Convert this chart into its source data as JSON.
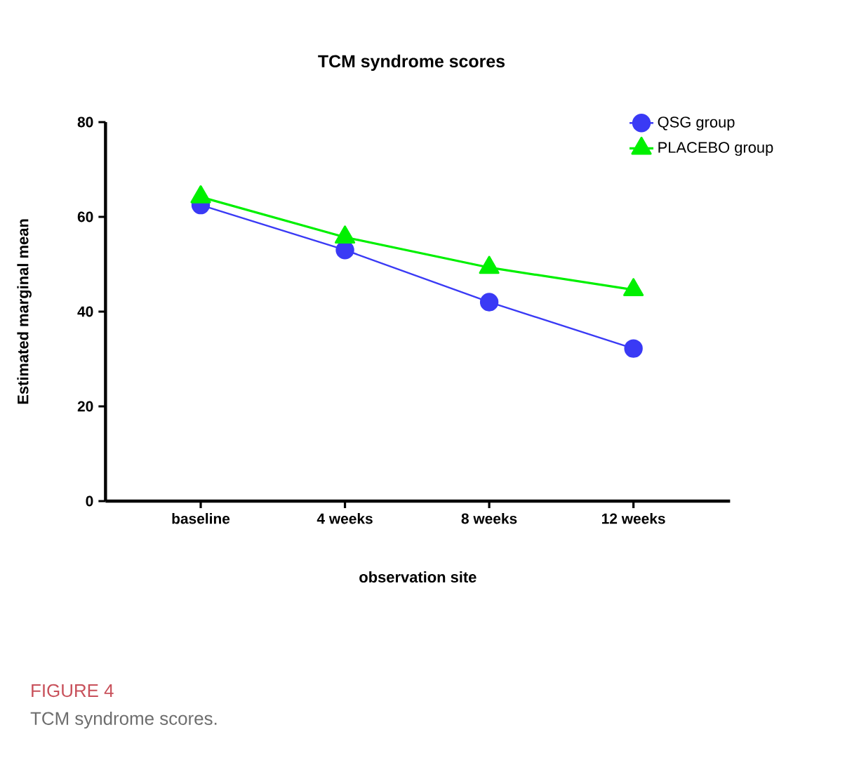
{
  "chart_data": {
    "type": "line",
    "title": "TCM syndrome scores",
    "xlabel": "observation site",
    "ylabel": "Estimated marginal mean",
    "categories": [
      "baseline",
      "4 weeks",
      "8 weeks",
      "12 weeks"
    ],
    "series": [
      {
        "name": "QSG group",
        "color": "#3a3af5",
        "marker": "circle",
        "values": [
          62.5,
          53.0,
          42.0,
          32.2
        ]
      },
      {
        "name": "PLACEBO group",
        "color": "#00f000",
        "marker": "triangle",
        "values": [
          64.2,
          55.7,
          49.3,
          44.6
        ]
      }
    ],
    "ylim": [
      0,
      80
    ],
    "yticks": [
      0,
      20,
      40,
      60,
      80
    ],
    "grid": false,
    "legend": "top right",
    "line_style": "solid",
    "annotations": [
      "FIGURE 4",
      "TCM syndrome scores."
    ]
  }
}
